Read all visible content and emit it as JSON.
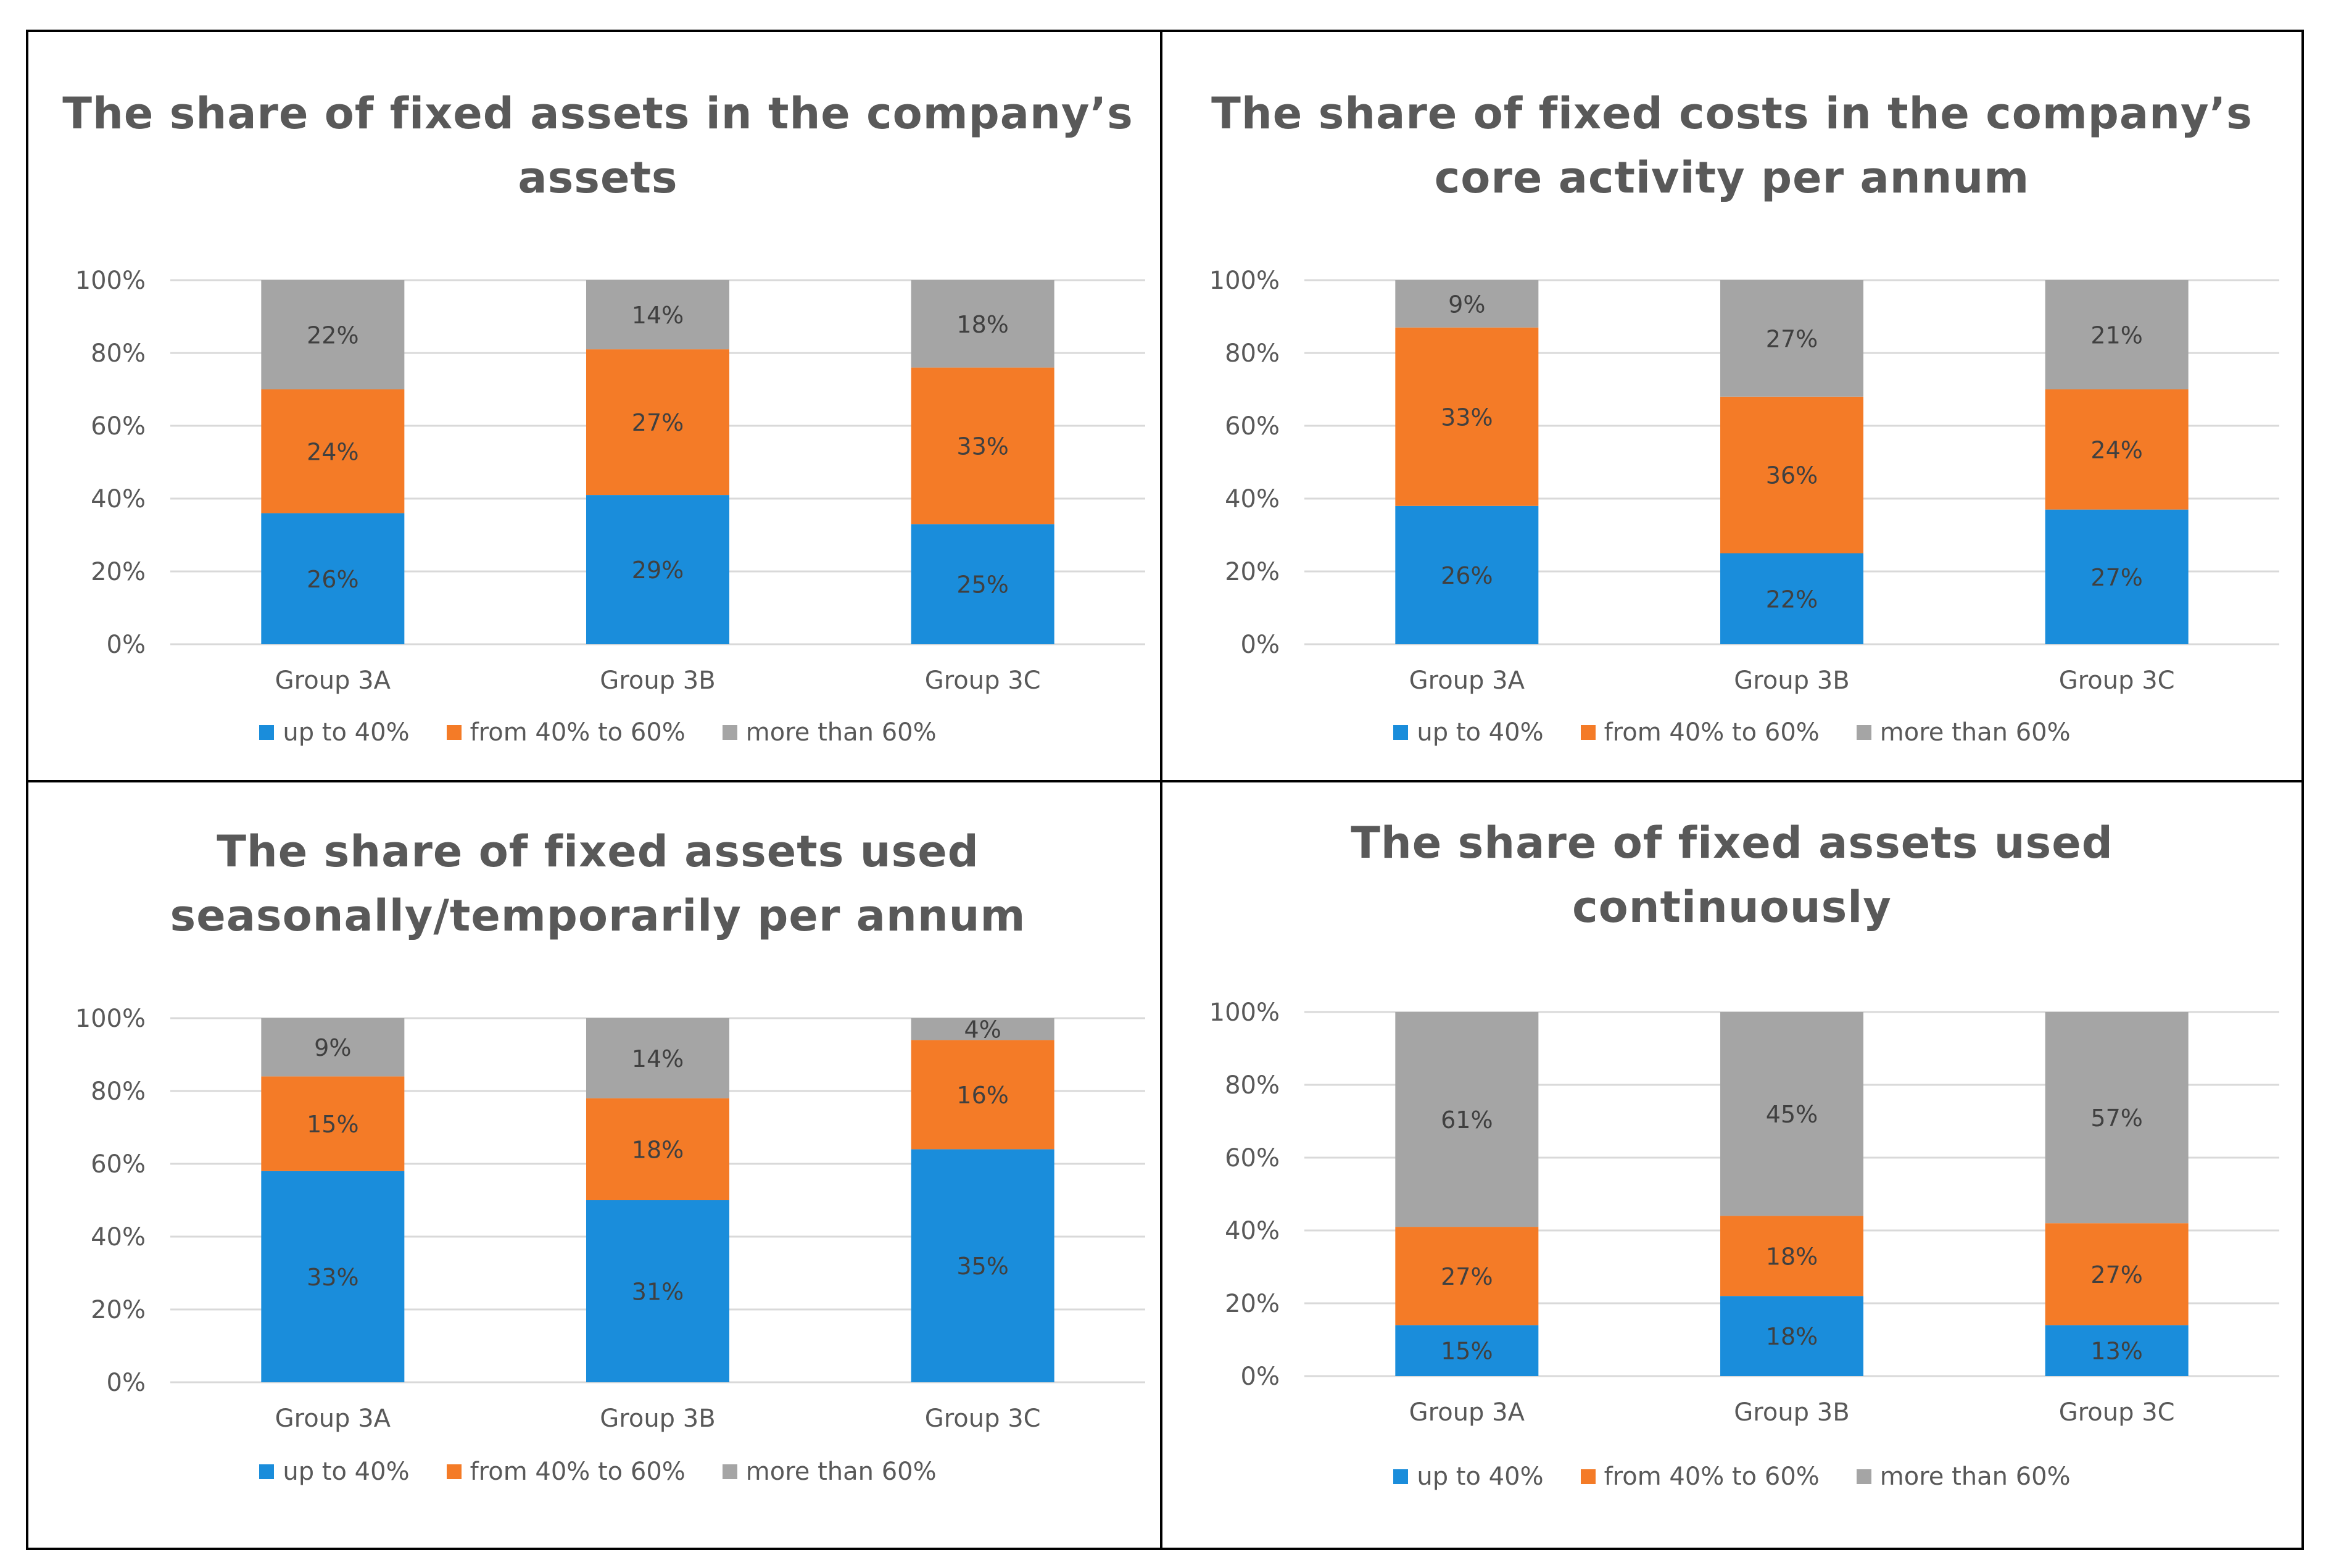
{
  "legend": [
    "up to 40%",
    "from 40% to 60%",
    "more than 60%"
  ],
  "colors": {
    "up_to_40": "#1a8ddb",
    "40_to_60": "#f47b27",
    "over_60": "#a5a5a5",
    "grid": "#d9d9d9"
  },
  "chart_data": [
    {
      "type": "bar",
      "stacked": true,
      "title_lines": [
        "The share of fixed assets in the company’s",
        "assets"
      ],
      "categories": [
        "Group 3A",
        "Group 3B",
        "Group 3C"
      ],
      "y_ticks": [
        "0%",
        "20%",
        "40%",
        "60%",
        "80%",
        "100%"
      ],
      "ylim": [
        0,
        100
      ],
      "series": [
        {
          "name": "up to 40%",
          "labels": [
            "26%",
            "29%",
            "25%"
          ],
          "values": [
            36,
            41,
            33
          ]
        },
        {
          "name": "from 40% to 60%",
          "labels": [
            "24%",
            "27%",
            "33%"
          ],
          "values": [
            34,
            40,
            43
          ]
        },
        {
          "name": "more than 60%",
          "labels": [
            "22%",
            "14%",
            "18%"
          ],
          "values": [
            30,
            19,
            24
          ]
        }
      ]
    },
    {
      "type": "bar",
      "stacked": true,
      "title_lines": [
        "The share of fixed costs in the company’s",
        "core activity per annum"
      ],
      "categories": [
        "Group 3A",
        "Group 3B",
        "Group 3C"
      ],
      "y_ticks": [
        "0%",
        "20%",
        "40%",
        "60%",
        "80%",
        "100%"
      ],
      "ylim": [
        0,
        100
      ],
      "series": [
        {
          "name": "up to 40%",
          "labels": [
            "26%",
            "22%",
            "27%"
          ],
          "values": [
            38,
            25,
            37
          ]
        },
        {
          "name": "from 40% to 60%",
          "labels": [
            "33%",
            "36%",
            "24%"
          ],
          "values": [
            49,
            43,
            33
          ]
        },
        {
          "name": "more than 60%",
          "labels": [
            "9%",
            "27%",
            "21%"
          ],
          "values": [
            13,
            32,
            30
          ]
        }
      ]
    },
    {
      "type": "bar",
      "stacked": true,
      "title_lines": [
        "The share of fixed assets used",
        "seasonally/temporarily  per annum"
      ],
      "categories": [
        "Group 3A",
        "Group 3B",
        "Group 3C"
      ],
      "y_ticks": [
        "0%",
        "20%",
        "40%",
        "60%",
        "80%",
        "100%"
      ],
      "ylim": [
        0,
        100
      ],
      "series": [
        {
          "name": "up to 40%",
          "labels": [
            "33%",
            "31%",
            "35%"
          ],
          "values": [
            58,
            50,
            64
          ]
        },
        {
          "name": "from 40% to 60%",
          "labels": [
            "15%",
            "18%",
            "16%"
          ],
          "values": [
            26,
            28,
            30
          ]
        },
        {
          "name": "more than 60%",
          "labels": [
            "9%",
            "14%",
            "4%"
          ],
          "values": [
            16,
            22,
            6
          ]
        }
      ]
    },
    {
      "type": "bar",
      "stacked": true,
      "title_lines": [
        "The share of fixed assets used",
        "continuously"
      ],
      "categories": [
        "Group 3A",
        "Group 3B",
        "Group 3C"
      ],
      "y_ticks": [
        "0%",
        "20%",
        "40%",
        "60%",
        "80%",
        "100%"
      ],
      "ylim": [
        0,
        100
      ],
      "series": [
        {
          "name": "up to 40%",
          "labels": [
            "15%",
            "18%",
            "13%"
          ],
          "values": [
            14,
            22,
            14
          ]
        },
        {
          "name": "from 40% to 60%",
          "labels": [
            "27%",
            "18%",
            "27%"
          ],
          "values": [
            27,
            22,
            28
          ]
        },
        {
          "name": "more than 60%",
          "labels": [
            "61%",
            "45%",
            "57%"
          ],
          "values": [
            59,
            56,
            58
          ]
        }
      ]
    }
  ]
}
